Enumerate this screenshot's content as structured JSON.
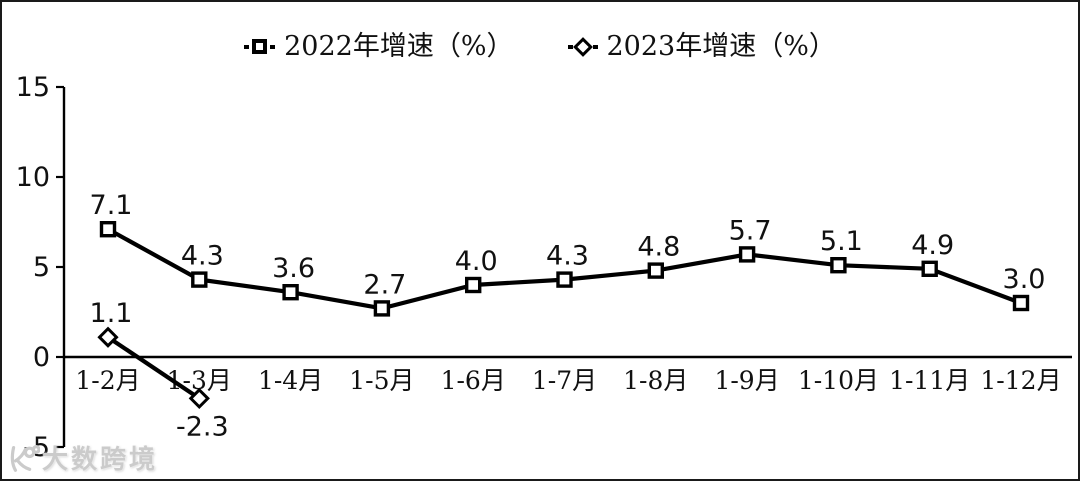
{
  "legend": {
    "items": [
      {
        "label": "2022年增速（%）",
        "marker": "square"
      },
      {
        "label": "2023年增速（%）",
        "marker": "diamond"
      }
    ]
  },
  "watermark": {
    "text": "大数跨境",
    "logo_icon": "dashu-kuajing-logo"
  },
  "chart_data": {
    "type": "line",
    "title": "",
    "xlabel": "",
    "ylabel": "",
    "categories": [
      "1-2月",
      "1-3月",
      "1-4月",
      "1-5月",
      "1-6月",
      "1-7月",
      "1-8月",
      "1-9月",
      "1-10月",
      "1-11月",
      "1-12月"
    ],
    "series": [
      {
        "name": "2022年增速（%）",
        "marker": "square",
        "color": "#000000",
        "values": [
          7.1,
          4.3,
          3.6,
          2.7,
          4.0,
          4.3,
          4.8,
          5.7,
          5.1,
          4.9,
          3.0
        ]
      },
      {
        "name": "2023年增速（%）",
        "marker": "diamond",
        "color": "#000000",
        "values": [
          1.1,
          -2.3,
          null,
          null,
          null,
          null,
          null,
          null,
          null,
          null,
          null
        ]
      }
    ],
    "ylim": [
      -5,
      15
    ],
    "yticks": [
      15,
      10,
      5,
      0,
      -5
    ],
    "grid": false,
    "legend_position": "top"
  }
}
